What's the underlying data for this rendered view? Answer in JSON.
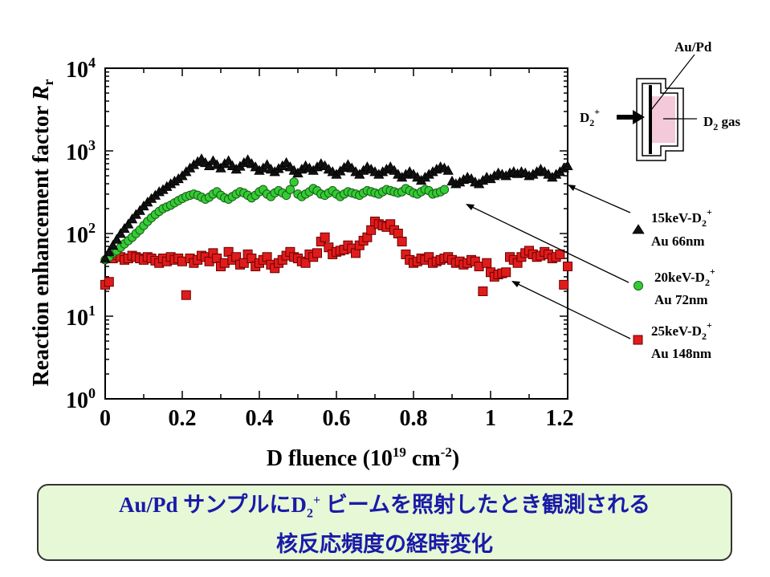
{
  "colors": {
    "triangle": "#111111",
    "circle_fill": "#33cc33",
    "square_fill": "#e01b1b",
    "caption_bg": "#e6f8d6",
    "caption_text": "#1a1aa8",
    "schematic_gas": "#f4c9da"
  },
  "chart_data": {
    "type": "scatter",
    "xlabel": "D fluence  (10^19 cm^-2)",
    "ylabel": "Reaction enhancement factor Rr",
    "xlim": [
      0,
      1.2
    ],
    "ylim": [
      1,
      10000
    ],
    "yscale": "log",
    "grid": false,
    "xticks": [
      "0",
      "0.2",
      "0.4",
      "0.6",
      "0.8",
      "1",
      "1.2"
    ],
    "yticks": [
      "10^0",
      "10^1",
      "10^2",
      "10^3",
      "10^4"
    ],
    "series": [
      {
        "name": "15keV-D2+ Au 66nm",
        "marker": "triangle",
        "x": [
          0.0,
          0.01,
          0.02,
          0.03,
          0.04,
          0.05,
          0.06,
          0.07,
          0.08,
          0.09,
          0.1,
          0.11,
          0.12,
          0.13,
          0.14,
          0.15,
          0.16,
          0.17,
          0.18,
          0.19,
          0.2,
          0.21,
          0.22,
          0.23,
          0.24,
          0.25,
          0.26,
          0.27,
          0.28,
          0.29,
          0.3,
          0.31,
          0.32,
          0.33,
          0.34,
          0.35,
          0.36,
          0.37,
          0.38,
          0.39,
          0.4,
          0.41,
          0.42,
          0.43,
          0.44,
          0.45,
          0.46,
          0.47,
          0.48,
          0.49,
          0.5,
          0.51,
          0.52,
          0.53,
          0.54,
          0.55,
          0.56,
          0.57,
          0.58,
          0.59,
          0.6,
          0.61,
          0.62,
          0.63,
          0.64,
          0.65,
          0.66,
          0.67,
          0.68,
          0.69,
          0.7,
          0.71,
          0.72,
          0.73,
          0.74,
          0.75,
          0.76,
          0.77,
          0.78,
          0.79,
          0.8,
          0.81,
          0.82,
          0.83,
          0.84,
          0.85,
          0.86,
          0.87,
          0.88,
          0.89,
          0.9,
          0.91,
          0.92,
          0.93,
          0.94,
          0.95,
          0.96,
          0.97,
          0.98,
          0.99,
          1.0,
          1.01,
          1.02,
          1.03,
          1.04,
          1.05,
          1.06,
          1.07,
          1.08,
          1.09,
          1.1,
          1.11,
          1.12,
          1.13,
          1.14,
          1.15,
          1.16,
          1.17,
          1.18,
          1.19,
          1.2
        ],
        "y": [
          50,
          60,
          72,
          85,
          100,
          115,
          130,
          150,
          170,
          190,
          215,
          240,
          265,
          290,
          320,
          340,
          370,
          400,
          430,
          460,
          500,
          560,
          620,
          680,
          740,
          800,
          720,
          660,
          760,
          680,
          620,
          700,
          760,
          660,
          600,
          650,
          720,
          780,
          700,
          640,
          580,
          620,
          680,
          600,
          560,
          610,
          660,
          720,
          640,
          580,
          540,
          600,
          660,
          620,
          580,
          640,
          700,
          660,
          600,
          560,
          520,
          570,
          630,
          680,
          620,
          560,
          520,
          580,
          640,
          600,
          560,
          520,
          560,
          600,
          640,
          580,
          520,
          480,
          520,
          560,
          520,
          480,
          440,
          480,
          520,
          560,
          600,
          640,
          620,
          580,
          430,
          400,
          420,
          450,
          480,
          460,
          420,
          400,
          440,
          480,
          460,
          500,
          540,
          520,
          500,
          540,
          560,
          530,
          560,
          540,
          500,
          520,
          560,
          600,
          560,
          520,
          480,
          520,
          560,
          620,
          660
        ]
      },
      {
        "name": "20keV-D2+ Au 72nm",
        "marker": "circle",
        "x": [
          0.0,
          0.01,
          0.02,
          0.03,
          0.04,
          0.05,
          0.06,
          0.07,
          0.08,
          0.09,
          0.1,
          0.11,
          0.12,
          0.13,
          0.14,
          0.15,
          0.16,
          0.17,
          0.18,
          0.19,
          0.2,
          0.21,
          0.22,
          0.23,
          0.24,
          0.25,
          0.26,
          0.27,
          0.28,
          0.29,
          0.3,
          0.31,
          0.32,
          0.33,
          0.34,
          0.35,
          0.36,
          0.37,
          0.38,
          0.39,
          0.4,
          0.41,
          0.42,
          0.43,
          0.44,
          0.45,
          0.46,
          0.47,
          0.48,
          0.49,
          0.5,
          0.51,
          0.52,
          0.53,
          0.54,
          0.55,
          0.56,
          0.57,
          0.58,
          0.59,
          0.6,
          0.61,
          0.62,
          0.63,
          0.64,
          0.65,
          0.66,
          0.67,
          0.68,
          0.69,
          0.7,
          0.71,
          0.72,
          0.73,
          0.74,
          0.75,
          0.76,
          0.77,
          0.78,
          0.79,
          0.8,
          0.81,
          0.82,
          0.83,
          0.84,
          0.85,
          0.86,
          0.87,
          0.88
        ],
        "y": [
          48,
          52,
          58,
          62,
          68,
          75,
          82,
          90,
          100,
          110,
          125,
          140,
          155,
          170,
          185,
          200,
          210,
          220,
          235,
          250,
          265,
          280,
          290,
          300,
          290,
          275,
          260,
          275,
          300,
          320,
          290,
          270,
          260,
          280,
          300,
          320,
          310,
          290,
          270,
          290,
          320,
          340,
          300,
          280,
          310,
          330,
          310,
          290,
          340,
          420,
          300,
          280,
          300,
          320,
          350,
          330,
          300,
          290,
          310,
          330,
          300,
          280,
          300,
          320,
          310,
          300,
          290,
          310,
          330,
          320,
          310,
          300,
          320,
          340,
          330,
          320,
          310,
          320,
          350,
          330,
          310,
          300,
          320,
          340,
          330,
          300,
          310,
          320,
          340
        ]
      },
      {
        "name": "25keV-D2+ Au 148nm",
        "marker": "square",
        "x": [
          0.0,
          0.01,
          0.02,
          0.03,
          0.04,
          0.05,
          0.06,
          0.07,
          0.08,
          0.09,
          0.1,
          0.11,
          0.12,
          0.13,
          0.14,
          0.15,
          0.16,
          0.17,
          0.18,
          0.19,
          0.2,
          0.21,
          0.22,
          0.23,
          0.24,
          0.25,
          0.26,
          0.27,
          0.28,
          0.29,
          0.3,
          0.31,
          0.32,
          0.33,
          0.34,
          0.35,
          0.36,
          0.37,
          0.38,
          0.39,
          0.4,
          0.41,
          0.42,
          0.43,
          0.44,
          0.45,
          0.46,
          0.47,
          0.48,
          0.49,
          0.5,
          0.51,
          0.52,
          0.53,
          0.54,
          0.55,
          0.56,
          0.57,
          0.58,
          0.59,
          0.6,
          0.61,
          0.62,
          0.63,
          0.64,
          0.65,
          0.66,
          0.67,
          0.68,
          0.69,
          0.7,
          0.71,
          0.72,
          0.73,
          0.74,
          0.75,
          0.76,
          0.77,
          0.78,
          0.79,
          0.8,
          0.81,
          0.82,
          0.83,
          0.84,
          0.85,
          0.86,
          0.87,
          0.88,
          0.89,
          0.9,
          0.91,
          0.92,
          0.93,
          0.94,
          0.95,
          0.96,
          0.97,
          0.98,
          0.99,
          1.0,
          1.01,
          1.02,
          1.03,
          1.04,
          1.05,
          1.06,
          1.07,
          1.08,
          1.09,
          1.1,
          1.11,
          1.12,
          1.13,
          1.14,
          1.15,
          1.16,
          1.17,
          1.18,
          1.19,
          1.2
        ],
        "y": [
          24,
          26,
          50,
          55,
          52,
          48,
          50,
          54,
          52,
          50,
          48,
          52,
          50,
          47,
          44,
          50,
          46,
          52,
          48,
          50,
          46,
          18,
          50,
          44,
          48,
          54,
          52,
          46,
          58,
          50,
          40,
          44,
          60,
          48,
          52,
          42,
          44,
          56,
          50,
          40,
          44,
          48,
          52,
          42,
          38,
          44,
          48,
          54,
          60,
          52,
          50,
          46,
          44,
          56,
          52,
          58,
          80,
          90,
          68,
          56,
          60,
          62,
          64,
          72,
          66,
          58,
          72,
          82,
          90,
          110,
          140,
          130,
          125,
          120,
          130,
          110,
          100,
          80,
          56,
          48,
          44,
          46,
          50,
          48,
          52,
          44,
          46,
          48,
          50,
          52,
          48,
          44,
          46,
          42,
          44,
          48,
          46,
          40,
          20,
          44,
          34,
          30,
          32,
          33,
          34,
          52,
          48,
          44,
          52,
          58,
          62,
          56,
          52,
          54,
          60,
          56,
          50,
          52,
          56,
          24,
          40
        ]
      }
    ]
  },
  "axes": {
    "xtick_labels": [
      "0",
      "0.2",
      "0.4",
      "0.6",
      "0.8",
      "1",
      "1.2"
    ],
    "ytick_bases": [
      "10",
      "10",
      "10",
      "10",
      "10"
    ],
    "ytick_exps": [
      "0",
      "1",
      "2",
      "3",
      "4"
    ],
    "xlabel_main": "D fluence  (10",
    "xlabel_exp1": "19",
    "xlabel_mid": " cm",
    "xlabel_exp2": "-2",
    "xlabel_end": ")",
    "ylabel_main": "Reaction enhancement factor ",
    "ylabel_var": "R",
    "ylabel_sub": "r"
  },
  "legend": [
    {
      "line1_pre": "15keV-D",
      "line1_sub": "2",
      "line1_sup": "+",
      "line2": "Au 66nm"
    },
    {
      "line1_pre": "20keV-D",
      "line1_sub": "2",
      "line1_sup": "+",
      "line2": "Au 72nm"
    },
    {
      "line1_pre": "25keV-D",
      "line1_sub": "2",
      "line1_sup": "+",
      "line2": "Au 148nm"
    }
  ],
  "schematic": {
    "label_aupd": "Au/Pd",
    "label_beam_pre": "D",
    "label_beam_sub": "2",
    "label_beam_sup": "+",
    "label_gas_pre": "D",
    "label_gas_sub": "2",
    "label_gas_post": " gas"
  },
  "caption": {
    "line1_pre": "Au/Pd サンプルにD",
    "line1_sub": "2",
    "line1_sup": "+",
    "line1_post": " ビームを照射したとき観測される",
    "line2": "核反応頻度の経時変化"
  }
}
